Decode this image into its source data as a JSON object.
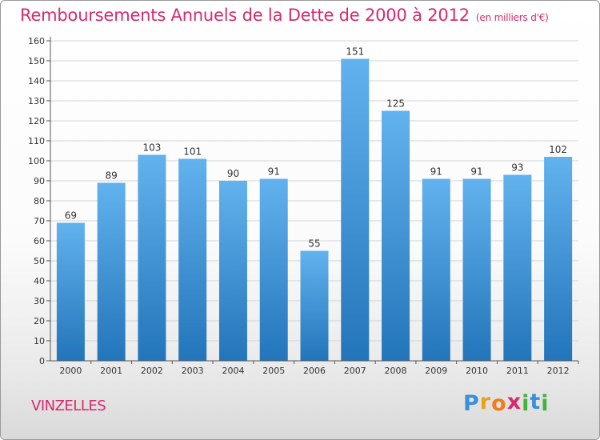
{
  "title": "Remboursements Annuels de la Dette de 2000 à 2012",
  "subtitle": "(en milliers d'€)",
  "town": "VINZELLES",
  "logo": {
    "letters": [
      "P",
      "r",
      "o",
      "x",
      "i",
      "t",
      "i"
    ],
    "colors": [
      "#3a8fd9",
      "#e8a21c",
      "#f07c1a",
      "#d62a6e",
      "#45b23d",
      "#3a8fd9",
      "#45b23d"
    ]
  },
  "colors": {
    "bar_top": "#62b2ee",
    "bar_bottom": "#2375ba",
    "accent": "#d62a6e",
    "grid": "#d4d4d4"
  },
  "chart_data": {
    "type": "bar",
    "title": "Remboursements Annuels de la Dette de 2000 à 2012",
    "subtitle": "(en milliers d'€)",
    "categories": [
      "2000",
      "2001",
      "2002",
      "2003",
      "2004",
      "2005",
      "2006",
      "2007",
      "2008",
      "2009",
      "2010",
      "2011",
      "2012"
    ],
    "values": [
      69,
      89,
      103,
      101,
      90,
      91,
      55,
      151,
      125,
      91,
      91,
      93,
      102
    ],
    "ylim": [
      0,
      160
    ],
    "yticks": [
      0,
      10,
      20,
      30,
      40,
      50,
      60,
      70,
      80,
      90,
      100,
      110,
      120,
      130,
      140,
      150,
      160
    ],
    "grid": true,
    "data_labels": true
  }
}
